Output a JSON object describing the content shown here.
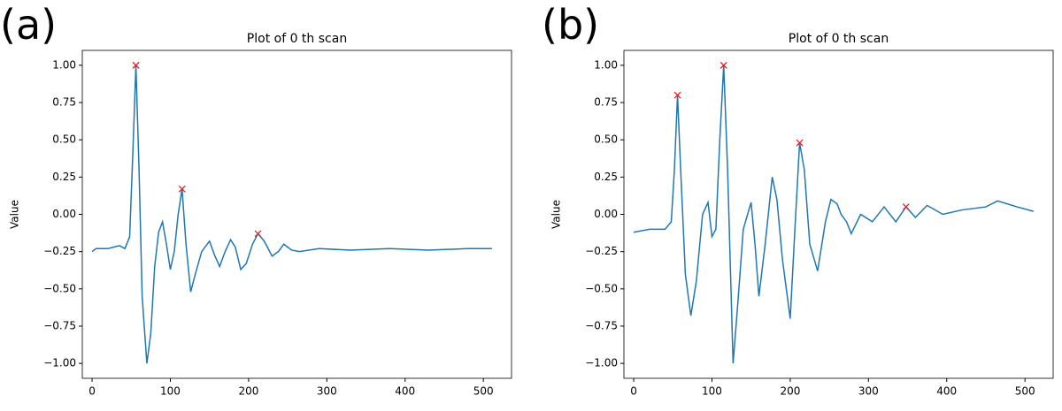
{
  "chart_data": [
    {
      "type": "line",
      "panel_label": "(a)",
      "title": "Plot of 0 th scan",
      "y_label": "Value",
      "color": "#1f77b4",
      "x": [
        0,
        5,
        20,
        35,
        42,
        48,
        52,
        56,
        60,
        64,
        70,
        75,
        80,
        85,
        90,
        95,
        100,
        105,
        110,
        115,
        120,
        126,
        132,
        140,
        150,
        157,
        163,
        170,
        177,
        183,
        190,
        197,
        205,
        212,
        220,
        230,
        238,
        245,
        255,
        265,
        290,
        330,
        380,
        430,
        480,
        511
      ],
      "values": [
        -0.25,
        -0.23,
        -0.23,
        -0.21,
        -0.23,
        -0.15,
        0.4,
        1.0,
        0.3,
        -0.55,
        -1.0,
        -0.8,
        -0.35,
        -0.12,
        -0.05,
        -0.2,
        -0.37,
        -0.25,
        0.0,
        0.17,
        -0.2,
        -0.52,
        -0.4,
        -0.25,
        -0.18,
        -0.28,
        -0.35,
        -0.25,
        -0.17,
        -0.22,
        -0.37,
        -0.33,
        -0.2,
        -0.13,
        -0.18,
        -0.28,
        -0.25,
        -0.2,
        -0.24,
        -0.25,
        -0.23,
        -0.24,
        -0.23,
        -0.24,
        -0.23,
        -0.23
      ],
      "peaks": {
        "color": "#d62728",
        "x": [
          56,
          115,
          212
        ],
        "values": [
          1.0,
          0.17,
          -0.13
        ]
      },
      "xlim": [
        -12.5,
        536
      ],
      "ylim": [
        -1.1,
        1.1
      ],
      "xticks": [
        0,
        100,
        200,
        300,
        400,
        500
      ],
      "yticks": [
        {
          "value": -1,
          "label": "−1.00"
        },
        {
          "value": -0.75,
          "label": "−0.75"
        },
        {
          "value": -0.5,
          "label": "−0.50"
        },
        {
          "value": -0.25,
          "label": "−0.25"
        },
        {
          "value": 0,
          "label": "0.00"
        },
        {
          "value": 0.25,
          "label": "0.25"
        },
        {
          "value": 0.5,
          "label": "0.50"
        },
        {
          "value": 0.75,
          "label": "0.75"
        },
        {
          "value": 1,
          "label": "1.00"
        }
      ]
    },
    {
      "type": "line",
      "panel_label": "(b)",
      "title": "Plot of 0 th scan",
      "y_label": "Value",
      "color": "#1f77b4",
      "x": [
        0,
        20,
        40,
        48,
        52,
        56,
        60,
        66,
        73,
        80,
        88,
        95,
        100,
        105,
        110,
        115,
        120,
        127,
        133,
        140,
        150,
        155,
        160,
        168,
        177,
        183,
        190,
        200,
        206,
        212,
        218,
        225,
        235,
        245,
        252,
        260,
        265,
        272,
        278,
        290,
        305,
        320,
        335,
        348,
        360,
        375,
        395,
        420,
        450,
        465,
        490,
        511
      ],
      "values": [
        -0.12,
        -0.1,
        -0.1,
        -0.05,
        0.3,
        0.8,
        0.3,
        -0.4,
        -0.68,
        -0.45,
        0.0,
        0.08,
        -0.15,
        -0.1,
        0.5,
        1.0,
        0.3,
        -1.0,
        -0.6,
        -0.1,
        0.08,
        -0.2,
        -0.55,
        -0.2,
        0.25,
        0.1,
        -0.3,
        -0.7,
        -0.1,
        0.48,
        0.3,
        -0.2,
        -0.38,
        -0.05,
        0.1,
        0.07,
        0.0,
        -0.05,
        -0.13,
        0.0,
        -0.05,
        0.05,
        -0.05,
        0.05,
        -0.02,
        0.06,
        0.0,
        0.03,
        0.05,
        0.09,
        0.05,
        0.02
      ],
      "peaks": {
        "color": "#d62728",
        "x": [
          56,
          115,
          212,
          348
        ],
        "values": [
          0.8,
          1.0,
          0.48,
          0.05
        ]
      },
      "xlim": [
        -12.5,
        536
      ],
      "ylim": [
        -1.1,
        1.1
      ],
      "xticks": [
        0,
        100,
        200,
        300,
        400,
        500
      ],
      "yticks": [
        {
          "value": -1,
          "label": "−1.00"
        },
        {
          "value": -0.75,
          "label": "−0.75"
        },
        {
          "value": -0.5,
          "label": "−0.50"
        },
        {
          "value": -0.25,
          "label": "−0.25"
        },
        {
          "value": 0,
          "label": "0.00"
        },
        {
          "value": 0.25,
          "label": "0.25"
        },
        {
          "value": 0.5,
          "label": "0.50"
        },
        {
          "value": 0.75,
          "label": "0.75"
        },
        {
          "value": 1,
          "label": "1.00"
        }
      ]
    }
  ]
}
